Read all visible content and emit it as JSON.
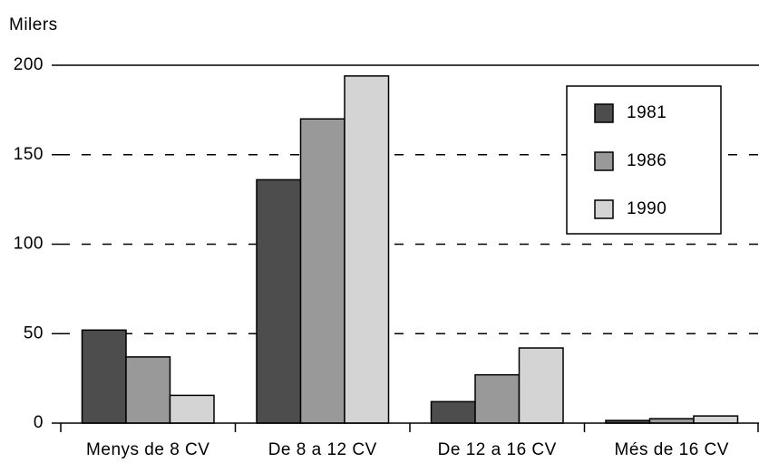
{
  "chart_data": {
    "type": "bar",
    "y_label": "Milers",
    "categories": [
      "Menys de 8 CV",
      "De 8 a 12 CV",
      "De 12 a 16 CV",
      "Més de 16 CV"
    ],
    "series": [
      {
        "name": "1981",
        "color": "#4d4d4d",
        "values": [
          52,
          136,
          12,
          1.5
        ]
      },
      {
        "name": "1986",
        "color": "#999999",
        "values": [
          37,
          170,
          27,
          2.5
        ]
      },
      {
        "name": "1990",
        "color": "#d4d4d4",
        "values": [
          15.5,
          194,
          42,
          4
        ]
      }
    ],
    "ylim": [
      0,
      200
    ],
    "yticks": [
      0,
      50,
      100,
      150,
      200
    ],
    "grid": true,
    "legend": "upper right"
  }
}
